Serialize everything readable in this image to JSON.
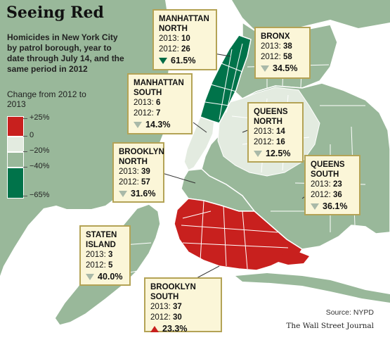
{
  "title": "Seeing Red",
  "subtitle": "Homicides in New York City by patrol borough, year to date through July 14, and the same period in 2012",
  "legend": {
    "title": "Change from 2012 to 2013",
    "labels": [
      "+25%",
      "0",
      "−20%",
      "−40%",
      "−65%"
    ],
    "colors": [
      "#c8201e",
      "#e3ebe0",
      "#99b89a",
      "#00734a"
    ]
  },
  "map_colors": {
    "water": "#ffffff",
    "land_other": "#99b89a",
    "medium_decline": "#99b89a",
    "light_decline": "#e3ebe0",
    "dark_decline": "#00734a",
    "increase": "#c8201e",
    "border": "#ffffff",
    "callout_fill": "#fbf6d8",
    "callout_border": "#b4a356"
  },
  "boroughs": [
    {
      "name": "MANHATTAN\nNORTH",
      "y2013_label": "2013:",
      "y2013": "10",
      "y2012_label": "2012:",
      "y2012": "26",
      "change": "61.5%",
      "direction": "down",
      "marker": "dark"
    },
    {
      "name": "BRONX",
      "y2013_label": "2013:",
      "y2013": "38",
      "y2012_label": "2012:",
      "y2012": "58",
      "change": "34.5%",
      "direction": "down",
      "marker": "light"
    },
    {
      "name": "MANHATTAN\nSOUTH",
      "y2013_label": "2013:",
      "y2013": "6",
      "y2012_label": "2012:",
      "y2012": "7",
      "change": "14.3%",
      "direction": "down",
      "marker": "light"
    },
    {
      "name": "QUEENS\nNORTH",
      "y2013_label": "2013:",
      "y2013": "14",
      "y2012_label": "2012:",
      "y2012": "16",
      "change": "12.5%",
      "direction": "down",
      "marker": "light"
    },
    {
      "name": "BROOKLYN\nNORTH",
      "y2013_label": "2013:",
      "y2013": "39",
      "y2012_label": "2012:",
      "y2012": "57",
      "change": "31.6%",
      "direction": "down",
      "marker": "light"
    },
    {
      "name": "QUEENS\nSOUTH",
      "y2013_label": "2013:",
      "y2013": "23",
      "y2012_label": "2012:",
      "y2012": "36",
      "change": "36.1%",
      "direction": "down",
      "marker": "light"
    },
    {
      "name": "STATEN\nISLAND",
      "y2013_label": "2013:",
      "y2013": "3",
      "y2012_label": "2012:",
      "y2012": "5",
      "change": "40.0%",
      "direction": "down",
      "marker": "light"
    },
    {
      "name": "BROOKLYN SOUTH",
      "y2013_label": "2013:",
      "y2013": "37",
      "y2012_label": "2012:",
      "y2012": "30",
      "change": "23.3%",
      "direction": "up",
      "marker": "red"
    }
  ],
  "source": "Source: NYPD",
  "credit": "The Wall Street Journal"
}
